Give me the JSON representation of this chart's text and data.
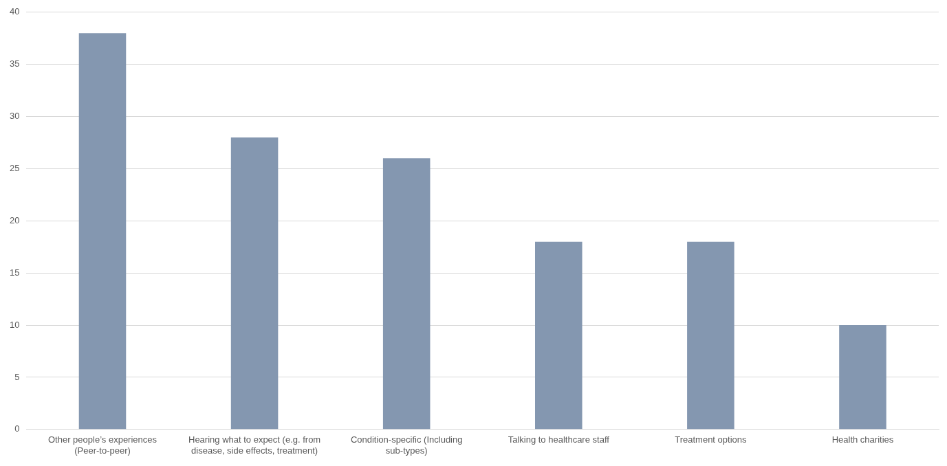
{
  "chart_data": {
    "type": "bar",
    "categories": [
      "Other people’s experiences (Peer-to-peer)",
      "Hearing what to expect (e.g. from disease, side effects, treatment)",
      "Condition-specific (Including sub-types)",
      "Talking to healthcare staff",
      "Treatment options",
      "Health charities"
    ],
    "values": [
      38,
      28,
      26,
      18,
      18,
      10
    ],
    "color": "#8497b0",
    "ylim": [
      0,
      40
    ],
    "yticks": [
      0,
      5,
      10,
      15,
      20,
      25,
      30,
      35,
      40
    ],
    "grid": "y",
    "legend": false
  }
}
